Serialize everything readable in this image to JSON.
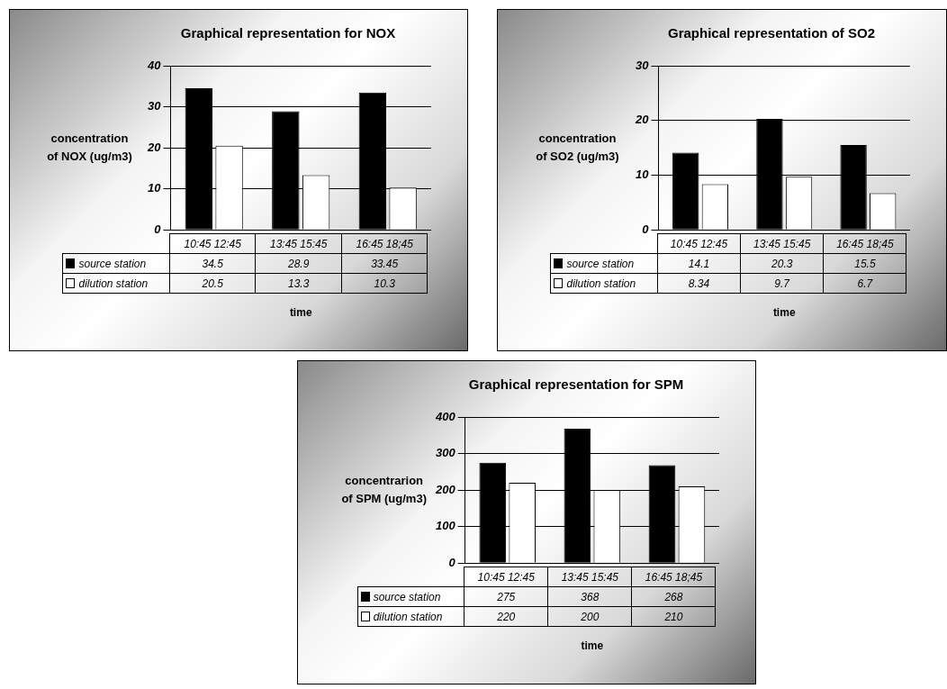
{
  "chart_data": [
    {
      "type": "bar",
      "title": "Graphical representation for NOX",
      "xlabel": "time",
      "ylabel": "concentration of NOX (ug/m3)",
      "categories": [
        "10:45 12:45",
        "13:45 15:45",
        "16:45 18;45"
      ],
      "series": [
        {
          "name": "source station",
          "color": "#000000",
          "values": [
            34.5,
            28.9,
            33.45
          ]
        },
        {
          "name": "dilution station",
          "color": "#ffffff",
          "values": [
            20.5,
            13.3,
            10.3
          ]
        }
      ],
      "ylim": [
        0,
        40
      ],
      "yticks": [
        0,
        10,
        20,
        30,
        40
      ],
      "grid": "y",
      "legend": "bottom",
      "data_labels": true
    },
    {
      "type": "bar",
      "title": "Graphical representation of SO2",
      "xlabel": "time",
      "ylabel": "concentration of SO2 (ug/m3)",
      "categories": [
        "10:45 12:45",
        "13:45 15:45",
        "16:45 18;45"
      ],
      "series": [
        {
          "name": "source station",
          "color": "#000000",
          "values": [
            14.1,
            20.3,
            15.5
          ]
        },
        {
          "name": "dilution station",
          "color": "#ffffff",
          "values": [
            8.34,
            9.7,
            6.7
          ]
        }
      ],
      "ylim": [
        0,
        30
      ],
      "yticks": [
        0,
        10,
        20,
        30
      ],
      "grid": "y",
      "legend": "bottom",
      "data_labels": true
    },
    {
      "type": "bar",
      "title": "Graphical representation for SPM",
      "xlabel": "time",
      "ylabel": "concentrarion of SPM (ug/m3)",
      "categories": [
        "10:45 12:45",
        "13:45 15:45",
        "16:45 18;45"
      ],
      "series": [
        {
          "name": "source station",
          "color": "#000000",
          "values": [
            275,
            368,
            268
          ]
        },
        {
          "name": "dilution station",
          "color": "#ffffff",
          "values": [
            220,
            200,
            210
          ]
        }
      ],
      "ylim": [
        0,
        400
      ],
      "yticks": [
        0,
        100,
        200,
        300,
        400
      ],
      "grid": "y",
      "legend": "bottom",
      "data_labels": true
    }
  ]
}
